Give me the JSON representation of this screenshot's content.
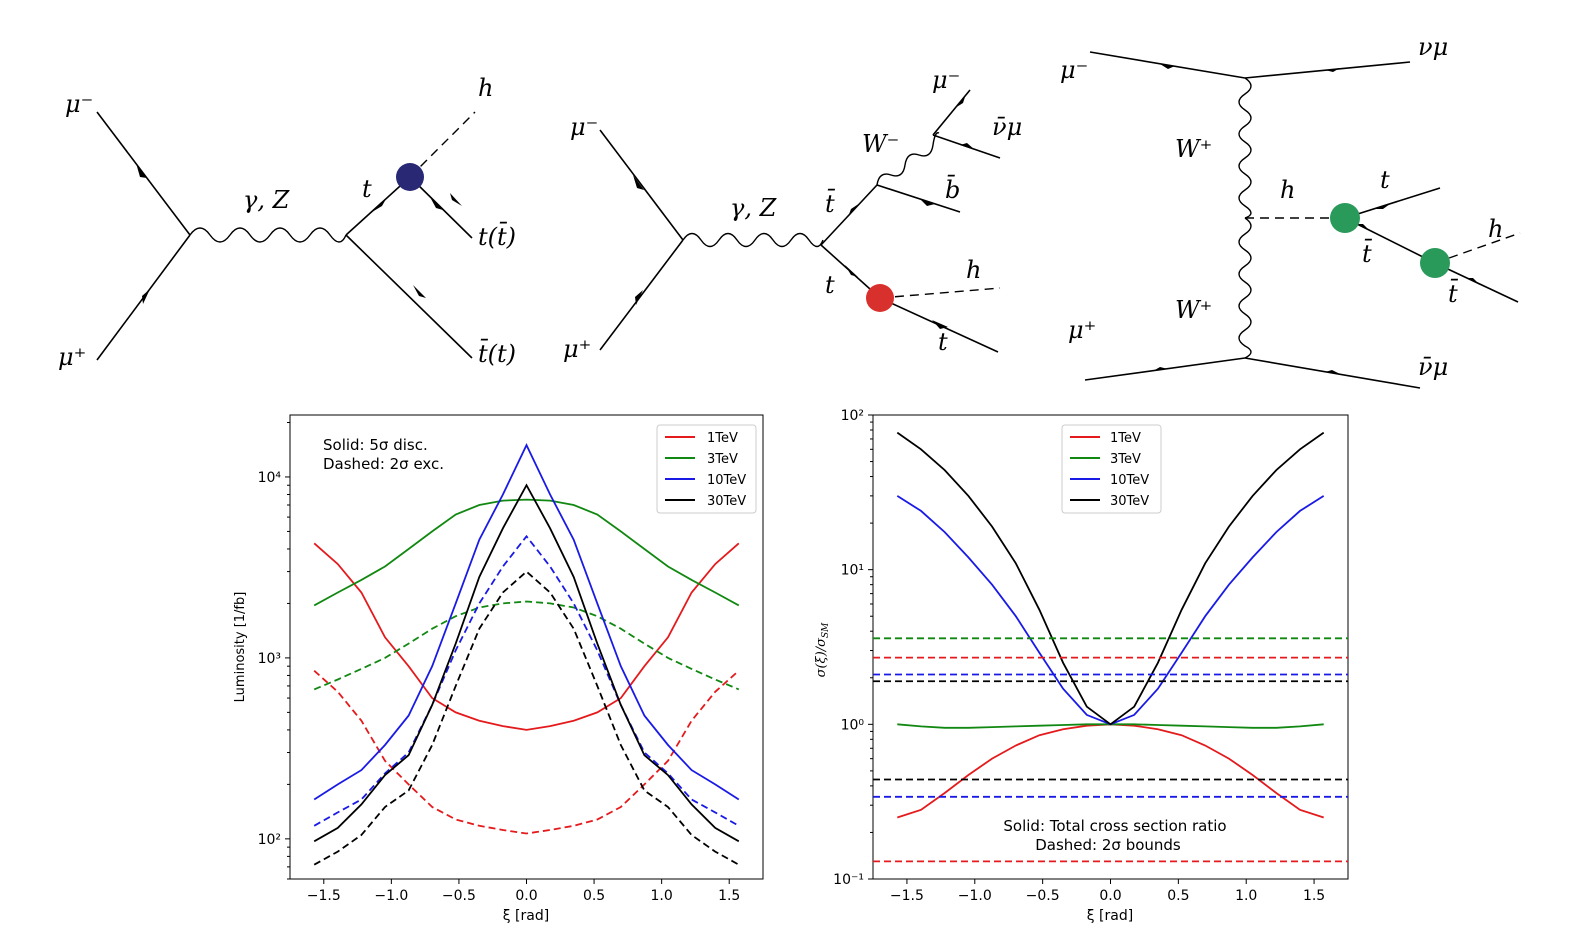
{
  "diagrams": {
    "d1": {
      "mu_minus": "μ⁻",
      "mu_plus": "μ⁺",
      "boson": "γ, Z",
      "higgs": "h",
      "top": "t",
      "t_tbar": "t(t̄)",
      "tbar_t": "t̄(t)"
    },
    "d2": {
      "mu_minus": "μ⁻",
      "mu_plus": "μ⁺",
      "boson": "γ, Z",
      "tbar": "t̄",
      "top": "t",
      "w_minus": "W⁻",
      "mu_out": "μ⁻",
      "nubar_mu": "ν̄μ",
      "bbar": "b̄",
      "higgs": "h",
      "t_out": "t"
    },
    "d3": {
      "mu_minus": "μ⁻",
      "mu_plus": "μ⁺",
      "nu_mu": "νμ",
      "w_plus_top": "W⁺",
      "w_plus_bottom": "W⁺",
      "higgs_mid": "h",
      "top": "t",
      "tbar_mid": "t̄",
      "higgs_right": "h",
      "tbar_right": "t̄",
      "nubar_mu": "ν̄μ"
    }
  },
  "colors": {
    "1TeV": "#e41a1c",
    "3TeV": "#118811",
    "10TeV": "#1a1ae6",
    "30TeV": "#000000",
    "blob_blue": "#282874",
    "blob_red": "#d8302c",
    "blob_green": "#2a9a5a"
  },
  "chart_data": [
    {
      "type": "line",
      "xlabel": "ξ [rad]",
      "ylabel": "Luminosity [1/fb]",
      "yscale": "log",
      "xlim": [
        -1.75,
        1.75
      ],
      "ylim": [
        60,
        22000
      ],
      "xticks": [
        -1.5,
        -1.0,
        -0.5,
        0.0,
        0.5,
        1.0,
        1.5
      ],
      "xtick_labels": [
        "−1.5",
        "−1.0",
        "−0.5",
        "0.0",
        "0.5",
        "1.0",
        "1.5"
      ],
      "yticks": [
        100,
        1000,
        10000
      ],
      "ytick_labels": [
        "10²",
        "10³",
        "10⁴"
      ],
      "annotation": [
        "Solid: 5σ disc.",
        "Dashed: 2σ exc."
      ],
      "legend_position": "top-right",
      "x": [
        -1.5708,
        -1.3963,
        -1.2217,
        -1.0472,
        -0.8727,
        -0.6981,
        -0.5236,
        -0.3491,
        -0.1745,
        0.0,
        0.1745,
        0.3491,
        0.5236,
        0.6981,
        0.8727,
        1.0472,
        1.2217,
        1.3963,
        1.5708
      ],
      "series": [
        {
          "name": "1TeV",
          "style": "solid",
          "values": [
            4300,
            3300,
            2300,
            1300,
            900,
            600,
            500,
            450,
            420,
            400,
            420,
            450,
            500,
            600,
            900,
            1300,
            2300,
            3300,
            4300
          ]
        },
        {
          "name": "1TeV",
          "style": "dashed",
          "values": [
            850,
            650,
            450,
            270,
            200,
            150,
            128,
            118,
            112,
            107,
            112,
            118,
            128,
            150,
            200,
            270,
            450,
            650,
            850
          ]
        },
        {
          "name": "3TeV",
          "style": "solid",
          "values": [
            1950,
            2300,
            2700,
            3200,
            4000,
            5000,
            6200,
            7000,
            7400,
            7500,
            7400,
            7000,
            6200,
            5000,
            4000,
            3200,
            2700,
            2300,
            1950
          ]
        },
        {
          "name": "3TeV",
          "style": "dashed",
          "values": [
            670,
            760,
            870,
            1000,
            1200,
            1450,
            1700,
            1900,
            2000,
            2050,
            2000,
            1900,
            1700,
            1450,
            1200,
            1000,
            870,
            760,
            670
          ]
        },
        {
          "name": "10TeV",
          "style": "solid",
          "values": [
            165,
            200,
            240,
            330,
            480,
            900,
            2000,
            4500,
            8000,
            15000,
            8000,
            4500,
            2000,
            900,
            480,
            330,
            240,
            200,
            165
          ]
        },
        {
          "name": "10TeV",
          "style": "dashed",
          "values": [
            118,
            140,
            165,
            230,
            300,
            550,
            1100,
            2000,
            3200,
            4700,
            3200,
            2000,
            1100,
            550,
            300,
            230,
            165,
            140,
            118
          ]
        },
        {
          "name": "30TeV",
          "style": "solid",
          "values": [
            97,
            115,
            155,
            225,
            290,
            550,
            1200,
            2800,
            5200,
            9000,
            5200,
            2800,
            1200,
            550,
            290,
            225,
            155,
            115,
            97
          ]
        },
        {
          "name": "30TeV",
          "style": "dashed",
          "values": [
            72,
            85,
            105,
            150,
            185,
            330,
            700,
            1450,
            2300,
            3000,
            2300,
            1450,
            700,
            330,
            185,
            150,
            105,
            85,
            72
          ]
        }
      ]
    },
    {
      "type": "line",
      "xlabel": "ξ [rad]",
      "ylabel": "σ(ξ)/σ_SM",
      "yscale": "log",
      "xlim": [
        -1.75,
        1.75
      ],
      "ylim": [
        0.1,
        100
      ],
      "xticks": [
        -1.5,
        -1.0,
        -0.5,
        0.0,
        0.5,
        1.0,
        1.5
      ],
      "xtick_labels": [
        "−1.5",
        "−1.0",
        "−0.5",
        "0.0",
        "0.5",
        "1.0",
        "1.5"
      ],
      "yticks": [
        0.1,
        1,
        10,
        100
      ],
      "ytick_labels": [
        "10⁻¹",
        "10⁰",
        "10¹",
        "10²"
      ],
      "annotation": [
        "Solid: Total cross section ratio",
        "Dashed: 2σ bounds"
      ],
      "legend_position": "top-center",
      "x": [
        -1.5708,
        -1.3963,
        -1.2217,
        -1.0472,
        -0.8727,
        -0.6981,
        -0.5236,
        -0.3491,
        -0.1745,
        0.0,
        0.1745,
        0.3491,
        0.5236,
        0.6981,
        0.8727,
        1.0472,
        1.2217,
        1.3963,
        1.5708
      ],
      "series": [
        {
          "name": "1TeV",
          "style": "solid",
          "values": [
            0.25,
            0.28,
            0.36,
            0.47,
            0.6,
            0.73,
            0.85,
            0.93,
            0.98,
            1.0,
            0.98,
            0.93,
            0.85,
            0.73,
            0.6,
            0.47,
            0.36,
            0.28,
            0.25
          ]
        },
        {
          "name": "3TeV",
          "style": "solid",
          "values": [
            1.0,
            0.97,
            0.95,
            0.95,
            0.96,
            0.97,
            0.98,
            0.99,
            1.0,
            1.0,
            1.0,
            0.99,
            0.98,
            0.97,
            0.96,
            0.95,
            0.95,
            0.97,
            1.0
          ]
        },
        {
          "name": "10TeV",
          "style": "solid",
          "values": [
            30,
            24,
            17.5,
            12,
            8,
            5,
            2.9,
            1.7,
            1.15,
            1.0,
            1.15,
            1.7,
            2.9,
            5,
            8,
            12,
            17.5,
            24,
            30
          ]
        },
        {
          "name": "30TeV",
          "style": "solid",
          "values": [
            77,
            60,
            44,
            30,
            19,
            11,
            5.5,
            2.5,
            1.3,
            1.0,
            1.3,
            2.5,
            5.5,
            11,
            19,
            30,
            44,
            60,
            77
          ]
        }
      ],
      "bounds": [
        {
          "name": "3TeV",
          "value": 3.6
        },
        {
          "name": "1TeV",
          "value": 2.7
        },
        {
          "name": "10TeV",
          "value": 2.1
        },
        {
          "name": "30TeV",
          "value": 1.9
        },
        {
          "name": "30TeV",
          "value": 0.44
        },
        {
          "name": "10TeV",
          "value": 0.34
        },
        {
          "name": "1TeV",
          "value": 0.13
        }
      ]
    }
  ],
  "legend": [
    "1TeV",
    "3TeV",
    "10TeV",
    "30TeV"
  ]
}
